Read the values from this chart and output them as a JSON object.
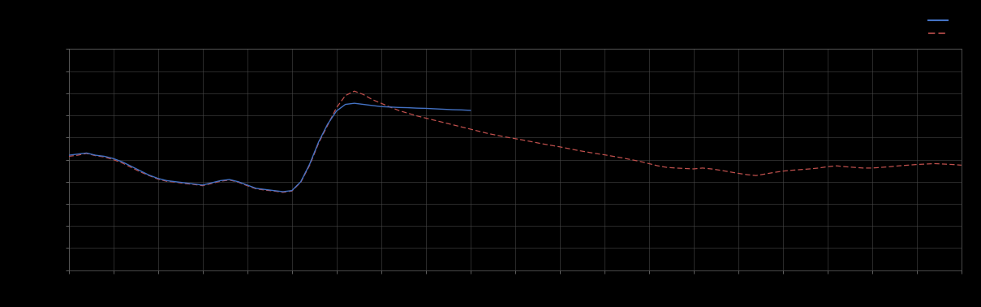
{
  "background_color": "#000000",
  "plot_bg_color": "#000000",
  "grid_color": "#4a4a4a",
  "line1_color": "#4472C4",
  "line2_color": "#C0504D",
  "figsize": [
    12.09,
    3.78
  ],
  "dpi": 100,
  "xlim": [
    0,
    100
  ],
  "ylim": [
    0,
    10
  ],
  "blue_x": [
    0,
    1,
    2,
    3,
    4,
    5,
    6,
    7,
    8,
    9,
    10,
    11,
    12,
    13,
    14,
    15,
    16,
    17,
    18,
    19,
    20,
    21,
    22,
    23,
    24,
    25,
    26,
    27,
    28,
    29,
    30,
    31,
    32,
    33,
    34,
    35,
    36,
    37,
    38,
    39,
    40,
    41,
    42,
    43,
    44,
    45
  ],
  "blue_y": [
    5.2,
    5.25,
    5.3,
    5.2,
    5.15,
    5.05,
    4.9,
    4.7,
    4.5,
    4.3,
    4.15,
    4.05,
    4.0,
    3.95,
    3.9,
    3.85,
    3.95,
    4.05,
    4.1,
    4.0,
    3.85,
    3.7,
    3.65,
    3.6,
    3.55,
    3.6,
    4.0,
    4.8,
    5.8,
    6.6,
    7.2,
    7.5,
    7.55,
    7.5,
    7.45,
    7.4,
    7.38,
    7.36,
    7.35,
    7.33,
    7.32,
    7.3,
    7.28,
    7.26,
    7.25,
    7.23
  ],
  "red_x": [
    0,
    1,
    2,
    3,
    4,
    5,
    6,
    7,
    8,
    9,
    10,
    11,
    12,
    13,
    14,
    15,
    16,
    17,
    18,
    19,
    20,
    21,
    22,
    23,
    24,
    25,
    26,
    27,
    28,
    29,
    30,
    31,
    32,
    33,
    34,
    35,
    36,
    37,
    38,
    39,
    40,
    41,
    42,
    43,
    44,
    45,
    46,
    47,
    48,
    49,
    50,
    51,
    52,
    53,
    54,
    55,
    56,
    57,
    58,
    59,
    60,
    61,
    62,
    63,
    64,
    65,
    66,
    67,
    68,
    69,
    70,
    71,
    72,
    73,
    74,
    75,
    76,
    77,
    78,
    79,
    80,
    81,
    82,
    83,
    84,
    85,
    86,
    87,
    88,
    89,
    90,
    91,
    92,
    93,
    94,
    95,
    96,
    97,
    98,
    99,
    100
  ],
  "red_y": [
    5.15,
    5.2,
    5.28,
    5.18,
    5.12,
    5.0,
    4.85,
    4.65,
    4.45,
    4.28,
    4.12,
    4.02,
    3.98,
    3.92,
    3.88,
    3.82,
    3.92,
    4.02,
    4.08,
    3.98,
    3.82,
    3.68,
    3.62,
    3.58,
    3.52,
    3.58,
    3.98,
    4.75,
    5.75,
    6.55,
    7.35,
    7.9,
    8.1,
    7.95,
    7.72,
    7.55,
    7.38,
    7.22,
    7.1,
    6.98,
    6.88,
    6.78,
    6.68,
    6.58,
    6.48,
    6.38,
    6.28,
    6.18,
    6.1,
    6.02,
    5.95,
    5.88,
    5.8,
    5.72,
    5.65,
    5.58,
    5.5,
    5.42,
    5.35,
    5.28,
    5.22,
    5.15,
    5.08,
    5.0,
    4.92,
    4.82,
    4.72,
    4.65,
    4.62,
    4.6,
    4.58,
    4.62,
    4.58,
    4.52,
    4.45,
    4.38,
    4.32,
    4.28,
    4.35,
    4.42,
    4.48,
    4.52,
    4.55,
    4.58,
    4.62,
    4.68,
    4.72,
    4.68,
    4.65,
    4.62,
    4.62,
    4.65,
    4.68,
    4.72,
    4.75,
    4.78,
    4.8,
    4.82,
    4.8,
    4.78,
    4.75
  ],
  "spine_color": "#666666",
  "tick_color": "#888888",
  "tick_labelsize": 6.5,
  "legend_blue_label": "",
  "legend_red_label": ""
}
